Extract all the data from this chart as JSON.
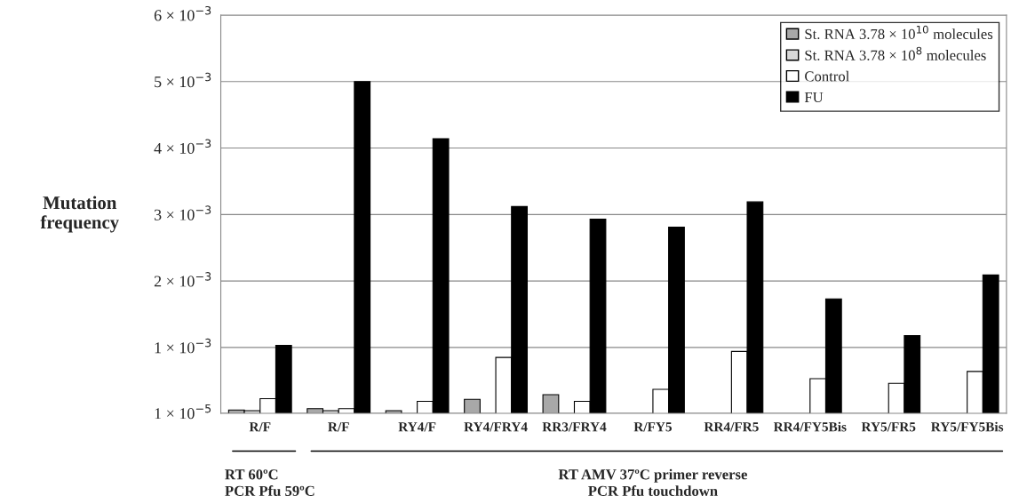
{
  "chart_data": {
    "type": "bar",
    "ylabel": "Mutation\nfrequency",
    "categories": [
      "R/F",
      "R/F",
      "RY4/F",
      "RY4/FRY4",
      "RR3/FRY4",
      "R/FY5",
      "RR4/FR5",
      "RR4/FY5Bis",
      "RY5/FR5",
      "RY5/FY5Bis"
    ],
    "series": [
      {
        "name": "St. RNA 3.78 × 10$^{10}$ molecules",
        "color": "#a8a8a8",
        "values": [
          6e-05,
          8e-05,
          5e-05,
          0.00022,
          0.00029,
          null,
          null,
          null,
          null,
          null
        ]
      },
      {
        "name": "St. RNA 3.78 × 10$^{8}$ molecules",
        "color": "#d8d8d8",
        "values": [
          5e-05,
          5e-05,
          null,
          null,
          null,
          null,
          null,
          null,
          null,
          null
        ]
      },
      {
        "name": "Control",
        "color": "#ffffff",
        "values": [
          0.00023,
          8e-05,
          0.00019,
          0.00085,
          0.00019,
          0.00037,
          0.00094,
          0.00053,
          0.00046,
          0.00064
        ]
      },
      {
        "name": "FU",
        "color": "#000000",
        "values": [
          0.00103,
          0.005,
          0.00414,
          0.00312,
          0.00293,
          0.00281,
          0.00319,
          0.00173,
          0.00118,
          0.00209
        ]
      }
    ],
    "ylim": [
      1e-05,
      0.006
    ],
    "yticks": [
      {
        "value": 1e-05,
        "label": "1 × 10$^{−5}$"
      },
      {
        "value": 0.001,
        "label": "1 × 10$^{−3}$"
      },
      {
        "value": 0.002,
        "label": "2 × 10$^{−3}$"
      },
      {
        "value": 0.003,
        "label": "3 × 10$^{−3}$"
      },
      {
        "value": 0.004,
        "label": "4 × 10$^{−3}$"
      },
      {
        "value": 0.005,
        "label": "5 × 10$^{−3}$"
      },
      {
        "value": 0.006,
        "label": "6 × 10$^{−3}$"
      }
    ],
    "grid": "y",
    "legend": "top right",
    "annotations": [
      "RT 60ºC\nPCR Pfu 59ºC",
      "RT AMV 37ºC primer reverse\nPCR Pfu touchdown"
    ]
  }
}
